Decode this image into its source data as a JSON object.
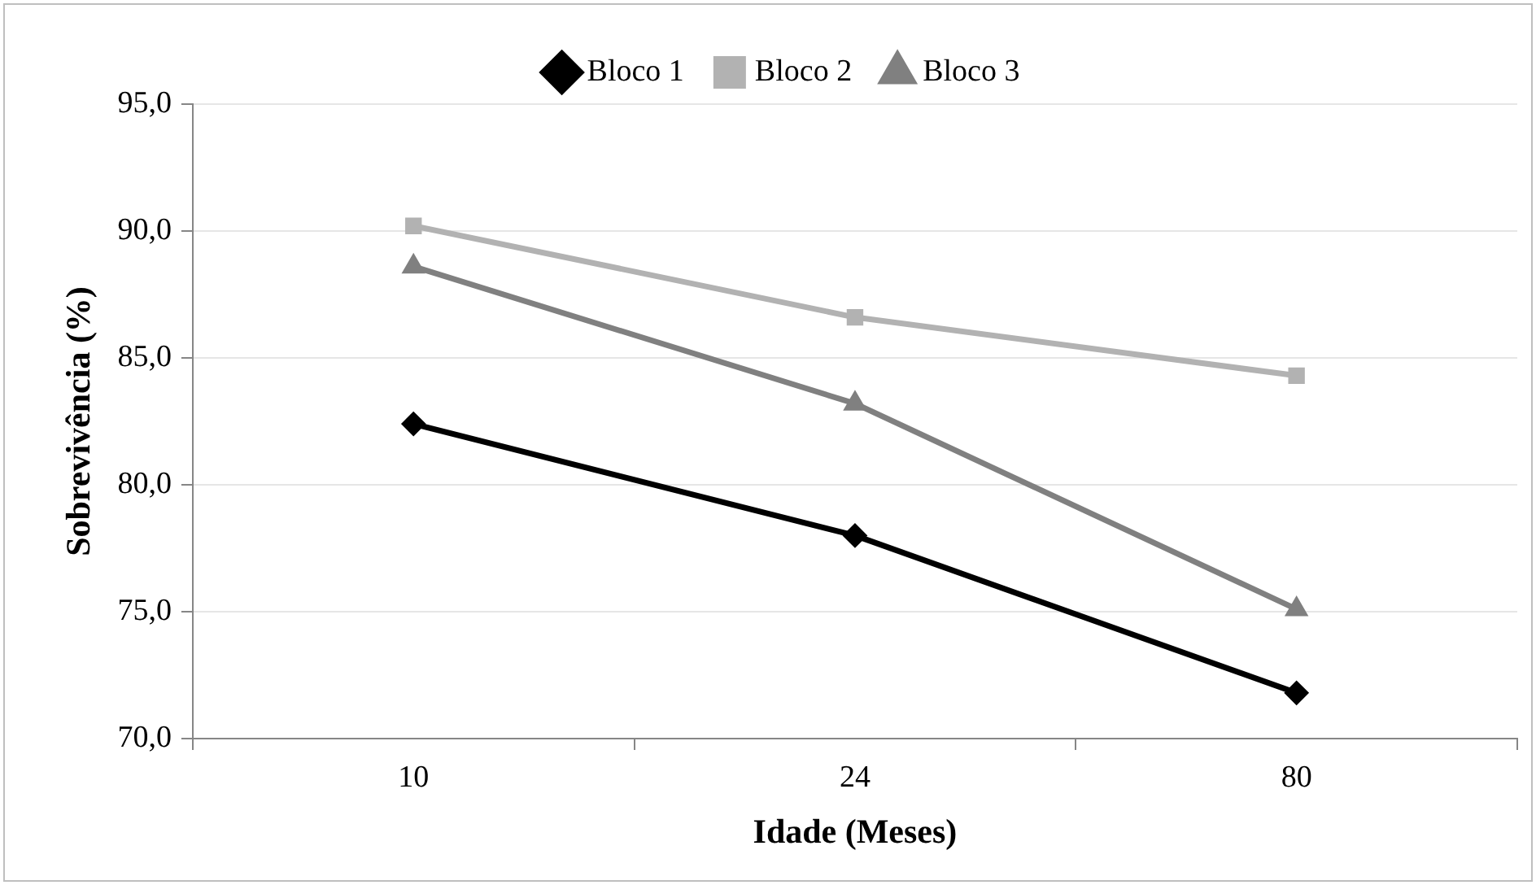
{
  "chart_data": {
    "type": "line",
    "xlabel": "Idade (Meses)",
    "ylabel": "Sobrevivência (%)",
    "categories": [
      "10",
      "24",
      "80"
    ],
    "series": [
      {
        "name": "Bloco 1",
        "color": "#000000",
        "marker": "diamond",
        "values": [
          82.4,
          78.0,
          71.8
        ]
      },
      {
        "name": "Bloco 2",
        "color": "#b2b2b2",
        "marker": "square",
        "values": [
          90.2,
          86.6,
          84.3
        ]
      },
      {
        "name": "Bloco 3",
        "color": "#808080",
        "marker": "triangle",
        "values": [
          88.6,
          83.2,
          75.1
        ]
      }
    ],
    "ylim": [
      70,
      95
    ],
    "yticks": [
      {
        "value": 70,
        "label": "70,0"
      },
      {
        "value": 75,
        "label": "75,0"
      },
      {
        "value": 80,
        "label": "80,0"
      },
      {
        "value": 85,
        "label": "85,0"
      },
      {
        "value": 90,
        "label": "90,0"
      },
      {
        "value": 95,
        "label": "95,0"
      }
    ],
    "grid": "y",
    "legend": "top",
    "line_style": "solid"
  }
}
